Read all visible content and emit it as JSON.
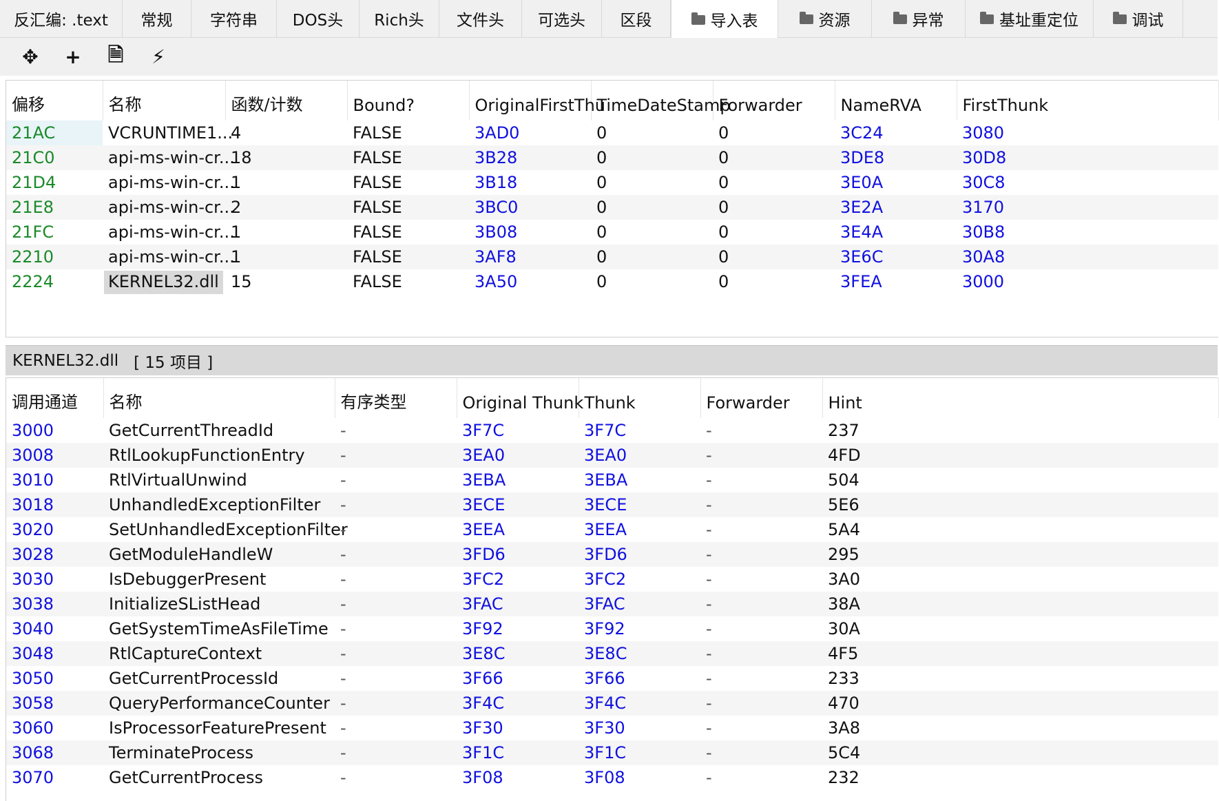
{
  "tabs": [
    {
      "label": "反汇编: .text",
      "icon": false,
      "w": 178
    },
    {
      "label": "常规",
      "icon": false,
      "w": 100
    },
    {
      "label": "字符串",
      "icon": false,
      "w": 124
    },
    {
      "label": "DOS头",
      "icon": false,
      "w": 120
    },
    {
      "label": "Rich头",
      "icon": false,
      "w": 116
    },
    {
      "label": "文件头",
      "icon": false,
      "w": 120
    },
    {
      "label": "可选头",
      "icon": false,
      "w": 116
    },
    {
      "label": "区段",
      "icon": false,
      "w": 100
    },
    {
      "label": "导入表",
      "icon": true,
      "w": 156
    },
    {
      "label": "资源",
      "icon": true,
      "w": 136
    },
    {
      "label": "异常",
      "icon": true,
      "w": 136
    },
    {
      "label": "基址重定位",
      "icon": true,
      "w": 186
    },
    {
      "label": "调试",
      "icon": true,
      "w": 130
    }
  ],
  "active_tab_index": 8,
  "toolbar": {
    "buttons": [
      {
        "name": "move-icon",
        "glyph": "✥"
      },
      {
        "name": "add-icon",
        "glyph": "+"
      },
      {
        "name": "new-file-icon",
        "glyph": "🗎"
      },
      {
        "name": "magic-wand-icon",
        "glyph": "⚡"
      }
    ]
  },
  "imports": {
    "columns": [
      "偏移",
      "名称",
      "函数/计数",
      "Bound?",
      "OriginalFirstThu",
      "TimeDateStamp",
      "Forwarder",
      "NameRVA",
      "FirstThunk"
    ],
    "rows": [
      [
        "21AC",
        "VCRUNTIME1...",
        "4",
        "FALSE",
        "3AD0",
        "0",
        "0",
        "3C24",
        "3080"
      ],
      [
        "21C0",
        "api-ms-win-cr...",
        "18",
        "FALSE",
        "3B28",
        "0",
        "0",
        "3DE8",
        "30D8"
      ],
      [
        "21D4",
        "api-ms-win-cr...",
        "1",
        "FALSE",
        "3B18",
        "0",
        "0",
        "3E0A",
        "30C8"
      ],
      [
        "21E8",
        "api-ms-win-cr...",
        "2",
        "FALSE",
        "3BC0",
        "0",
        "0",
        "3E2A",
        "3170"
      ],
      [
        "21FC",
        "api-ms-win-cr...",
        "1",
        "FALSE",
        "3B08",
        "0",
        "0",
        "3E4A",
        "30B8"
      ],
      [
        "2210",
        "api-ms-win-cr...",
        "1",
        "FALSE",
        "3AF8",
        "0",
        "0",
        "3E6C",
        "30A8"
      ],
      [
        "2224",
        "KERNEL32.dll",
        "15",
        "FALSE",
        "3A50",
        "0",
        "0",
        "3FEA",
        "3000"
      ]
    ],
    "selected_row": 6
  },
  "section": {
    "dll": "KERNEL32.dll",
    "count": "[ 15 项目 ]"
  },
  "functions": {
    "columns": [
      "调用通道",
      "名称",
      "有序类型",
      "Original Thunk",
      "Thunk",
      "Forwarder",
      "Hint"
    ],
    "rows": [
      [
        "3000",
        "GetCurrentThreadId",
        "-",
        "3F7C",
        "3F7C",
        "-",
        "237"
      ],
      [
        "3008",
        "RtlLookupFunctionEntry",
        "-",
        "3EA0",
        "3EA0",
        "-",
        "4FD"
      ],
      [
        "3010",
        "RtlVirtualUnwind",
        "-",
        "3EBA",
        "3EBA",
        "-",
        "504"
      ],
      [
        "3018",
        "UnhandledExceptionFilter",
        "-",
        "3ECE",
        "3ECE",
        "-",
        "5E6"
      ],
      [
        "3020",
        "SetUnhandledExceptionFilter",
        "-",
        "3EEA",
        "3EEA",
        "-",
        "5A4"
      ],
      [
        "3028",
        "GetModuleHandleW",
        "-",
        "3FD6",
        "3FD6",
        "-",
        "295"
      ],
      [
        "3030",
        "IsDebuggerPresent",
        "-",
        "3FC2",
        "3FC2",
        "-",
        "3A0"
      ],
      [
        "3038",
        "InitializeSListHead",
        "-",
        "3FAC",
        "3FAC",
        "-",
        "38A"
      ],
      [
        "3040",
        "GetSystemTimeAsFileTime",
        "-",
        "3F92",
        "3F92",
        "-",
        "30A"
      ],
      [
        "3048",
        "RtlCaptureContext",
        "-",
        "3E8C",
        "3E8C",
        "-",
        "4F5"
      ],
      [
        "3050",
        "GetCurrentProcessId",
        "-",
        "3F66",
        "3F66",
        "-",
        "233"
      ],
      [
        "3058",
        "QueryPerformanceCounter",
        "-",
        "3F4C",
        "3F4C",
        "-",
        "470"
      ],
      [
        "3060",
        "IsProcessorFeaturePresent",
        "-",
        "3F30",
        "3F30",
        "-",
        "3A8"
      ],
      [
        "3068",
        "TerminateProcess",
        "-",
        "3F1C",
        "3F1C",
        "-",
        "5C4"
      ],
      [
        "3070",
        "GetCurrentProcess",
        "-",
        "3F08",
        "3F08",
        "-",
        "232"
      ]
    ]
  }
}
